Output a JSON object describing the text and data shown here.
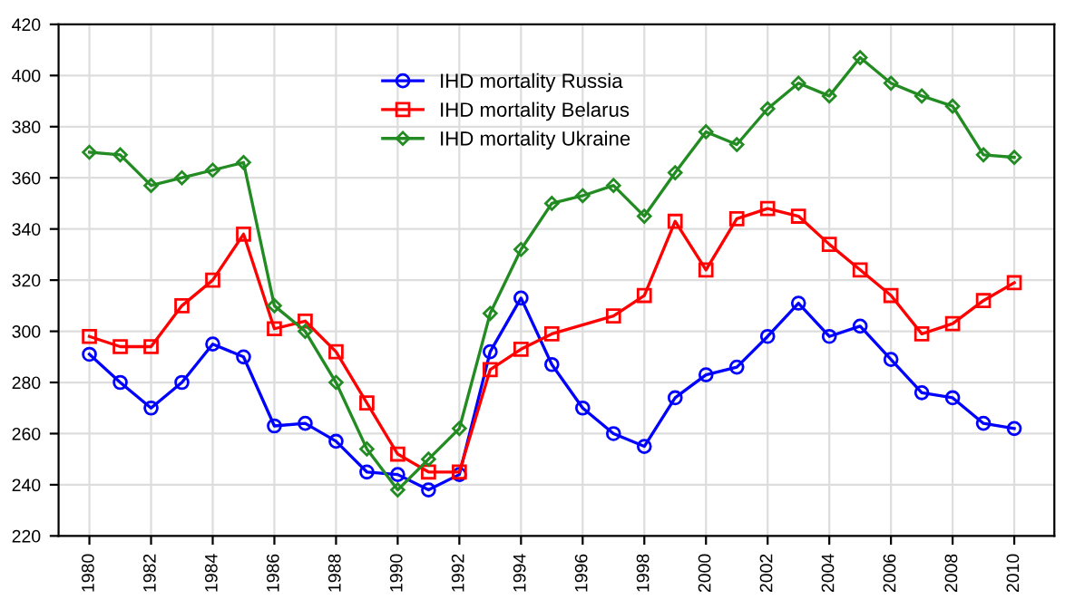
{
  "chart_data": {
    "type": "line",
    "x": [
      1980,
      1981,
      1982,
      1983,
      1984,
      1985,
      1986,
      1987,
      1988,
      1989,
      1990,
      1991,
      1992,
      1993,
      1994,
      1995,
      1996,
      1997,
      1998,
      1999,
      2000,
      2001,
      2002,
      2003,
      2004,
      2005,
      2006,
      2007,
      2008,
      2009,
      2010
    ],
    "series": [
      {
        "name": "IHD mortality Russia",
        "color": "#0000ff",
        "marker": "circle",
        "values": [
          291,
          280,
          270,
          280,
          295,
          290,
          263,
          264,
          257,
          245,
          244,
          238,
          244,
          292,
          313,
          287,
          270,
          260,
          255,
          274,
          283,
          286,
          298,
          311,
          298,
          302,
          289,
          276,
          274,
          264,
          262
        ]
      },
      {
        "name": "IHD mortality Belarus",
        "color": "#ff0000",
        "marker": "square",
        "values": [
          298,
          294,
          294,
          310,
          320,
          338,
          301,
          304,
          292,
          272,
          252,
          245,
          245,
          285,
          293,
          299,
          null,
          306,
          314,
          343,
          324,
          344,
          348,
          345,
          334,
          324,
          314,
          299,
          303,
          312,
          319
        ]
      },
      {
        "name": "IHD mortality Ukraine",
        "color": "#228b22",
        "marker": "diamond",
        "values": [
          370,
          369,
          357,
          360,
          363,
          366,
          310,
          300,
          280,
          254,
          238,
          250,
          262,
          307,
          332,
          350,
          353,
          357,
          345,
          362,
          378,
          373,
          387,
          397,
          392,
          407,
          397,
          392,
          388,
          369,
          368
        ]
      }
    ],
    "xlim": [
      1979,
      2011.3
    ],
    "xticks": [
      1980,
      1982,
      1984,
      1986,
      1988,
      1990,
      1992,
      1994,
      1996,
      1998,
      2000,
      2002,
      2004,
      2006,
      2008,
      2010
    ],
    "ylim": [
      220,
      420
    ],
    "yticks": [
      220,
      240,
      260,
      280,
      300,
      320,
      340,
      360,
      380,
      400,
      420
    ],
    "grid": true,
    "legend": "top",
    "line_style": "solid"
  }
}
